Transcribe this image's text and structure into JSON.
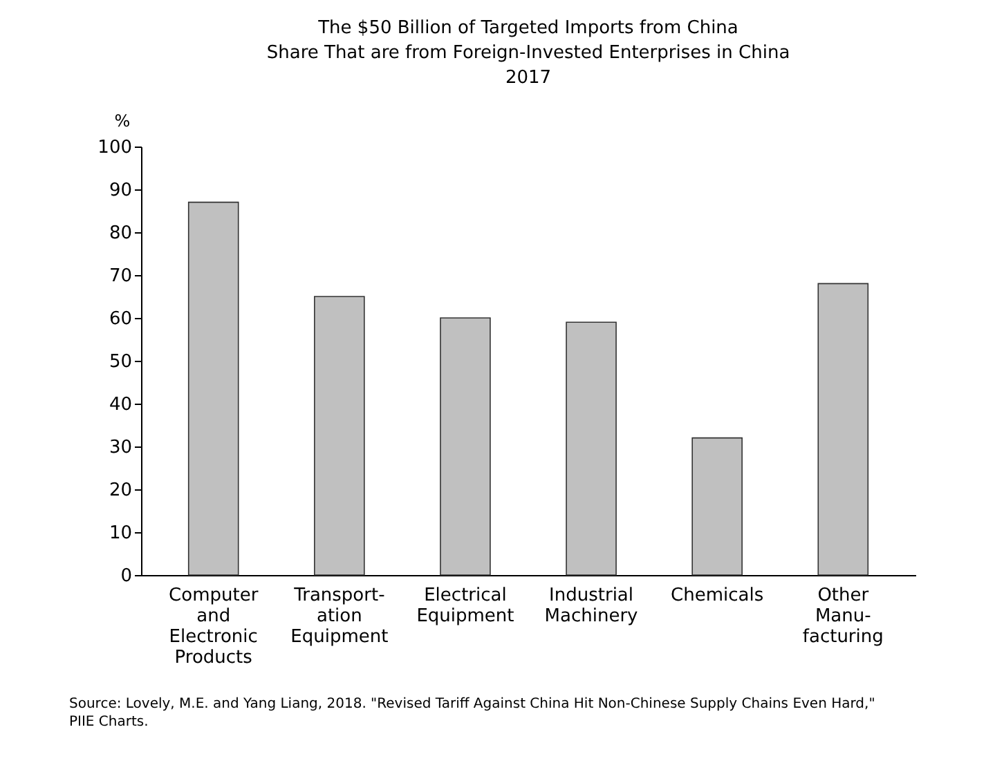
{
  "chart_data": {
    "type": "bar",
    "title": "The $50 Billion of Targeted Imports from China\nShare That are from Foreign-Invested Enterprises in China\n2017",
    "ylabel": "%",
    "categories": [
      "Computer\nand\nElectronic\nProducts",
      "Transport-\nation\nEquipment",
      "Electrical\nEquipment",
      "Industrial\nMachinery",
      "Chemicals",
      "Other\nManu-\nfacturing"
    ],
    "values": [
      87,
      65,
      60,
      59,
      32,
      68
    ],
    "color": "#c0c0c0",
    "ylim": [
      0,
      100
    ],
    "yticks": [
      0,
      10,
      20,
      30,
      40,
      50,
      60,
      70,
      80,
      90,
      100
    ],
    "grid": false,
    "annotations": [
      "Source: Lovely, M.E. and Yang Liang, 2018. \"Revised Tariff Against China Hit Non-Chinese Supply Chains Even Hard,\" PIIE Charts."
    ]
  }
}
